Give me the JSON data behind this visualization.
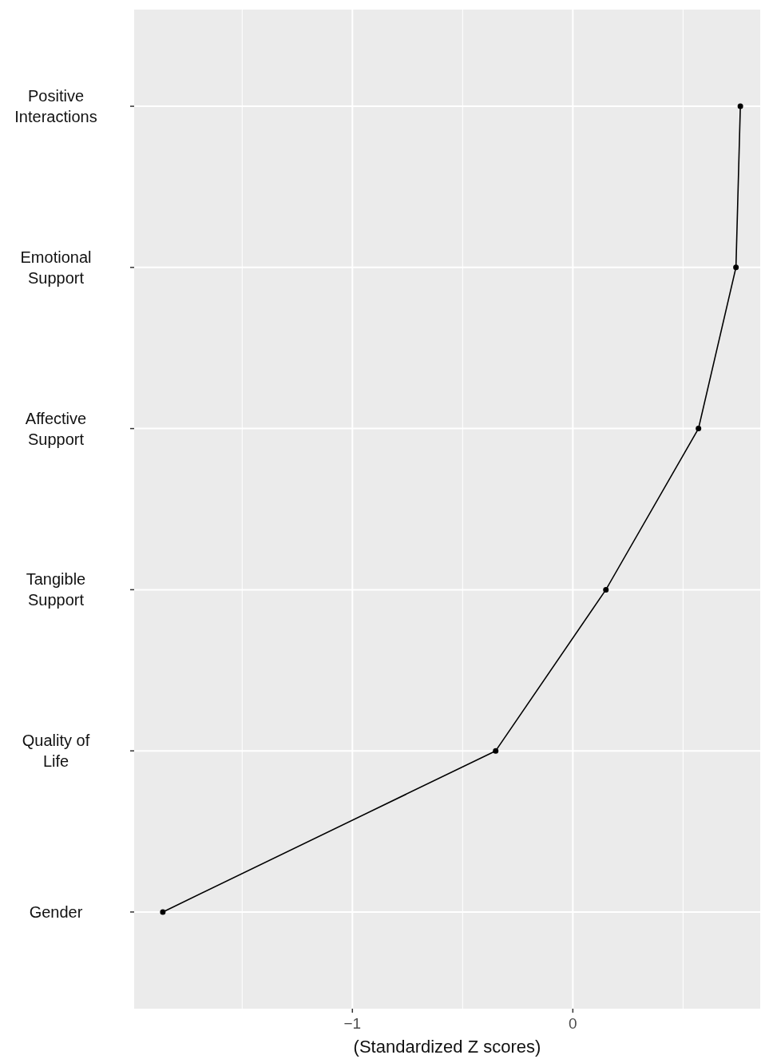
{
  "chart_data": {
    "type": "line",
    "orientation": "horizontal",
    "xlabel": "(Standardized Z scores)",
    "categories": [
      "Positive Interactions",
      "Emotional Support",
      "Affective Support",
      "Tangible Support",
      "Quality of Life",
      "Gender"
    ],
    "series": [
      {
        "color": "#000000",
        "values": [
          0.76,
          0.74,
          0.57,
          0.15,
          -0.35,
          -1.86
        ]
      }
    ],
    "xlim": [
      -1.99,
      0.85
    ],
    "xticks": [
      {
        "value": -1.5,
        "label": null
      },
      {
        "value": -1,
        "label": "−1"
      },
      {
        "value": -0.5,
        "label": null
      },
      {
        "value": 0,
        "label": "0"
      },
      {
        "value": 0.5,
        "label": null
      }
    ],
    "grid": true,
    "marker": "circle",
    "line_style": "solid"
  }
}
